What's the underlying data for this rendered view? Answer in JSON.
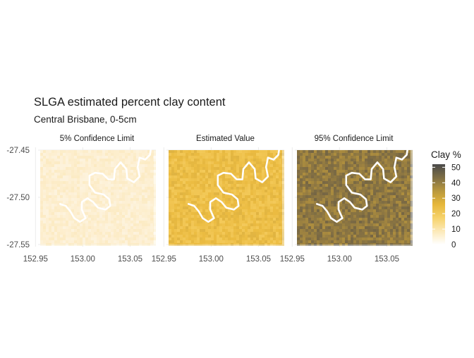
{
  "title": "SLGA estimated percent clay content",
  "subtitle": "Central Brisbane, 0-5cm",
  "panels": [
    {
      "label": "5% Confidence Limit",
      "base_color": "#FCEED2",
      "mid_level": 6,
      "grain_level": 3
    },
    {
      "label": "Estimated Value",
      "base_color": "#F2C24A",
      "mid_level": 24,
      "grain_level": 6
    },
    {
      "label": "95% Confidence Limit",
      "base_color": "#A2843E",
      "mid_level": 43,
      "grain_level": 8
    }
  ],
  "x_axis": {
    "ticks": [
      "152.95",
      "153.00",
      "153.05"
    ],
    "values": [
      152.95,
      153.0,
      153.05
    ],
    "range": [
      152.955,
      153.075
    ]
  },
  "y_axis": {
    "ticks": [
      "-27.45",
      "-27.50",
      "-27.55"
    ],
    "values": [
      -27.45,
      -27.5,
      -27.55
    ],
    "range": [
      -27.55,
      -27.45
    ]
  },
  "legend": {
    "title": "Clay %",
    "ticks": [
      "50",
      "40",
      "30",
      "20",
      "10",
      "0"
    ],
    "values": [
      50,
      40,
      30,
      20,
      10,
      0
    ],
    "range": [
      0,
      52
    ],
    "colors": [
      "#FFFFFF",
      "#FCE9B8",
      "#F6D26A",
      "#E6B73A",
      "#B9983E",
      "#7E6E45",
      "#4A4A4A"
    ]
  },
  "river": {
    "color": "#FFFFFF",
    "path": [
      [
        153.0725,
        -27.445
      ],
      [
        153.071,
        -27.455
      ],
      [
        153.066,
        -27.46
      ],
      [
        153.06,
        -27.458
      ],
      [
        153.058,
        -27.468
      ],
      [
        153.06,
        -27.478
      ],
      [
        153.054,
        -27.484
      ],
      [
        153.047,
        -27.48
      ],
      [
        153.046,
        -27.47
      ],
      [
        153.04,
        -27.463
      ],
      [
        153.034,
        -27.47
      ],
      [
        153.033,
        -27.481
      ],
      [
        153.027,
        -27.481
      ],
      [
        153.021,
        -27.475
      ],
      [
        153.013,
        -27.474
      ],
      [
        153.007,
        -27.477
      ],
      [
        153.007,
        -27.487
      ],
      [
        153.013,
        -27.495
      ],
      [
        153.022,
        -27.497
      ],
      [
        153.028,
        -27.502
      ],
      [
        153.029,
        -27.509
      ],
      [
        153.024,
        -27.513
      ],
      [
        153.016,
        -27.511
      ],
      [
        153.011,
        -27.505
      ],
      [
        153.005,
        -27.501
      ],
      [
        152.999,
        -27.505
      ],
      [
        152.999,
        -27.513
      ],
      [
        153.003,
        -27.522
      ],
      [
        152.997,
        -27.526
      ],
      [
        152.991,
        -27.522
      ],
      [
        152.987,
        -27.515
      ],
      [
        152.982,
        -27.509
      ],
      [
        152.976,
        -27.507
      ]
    ]
  }
}
